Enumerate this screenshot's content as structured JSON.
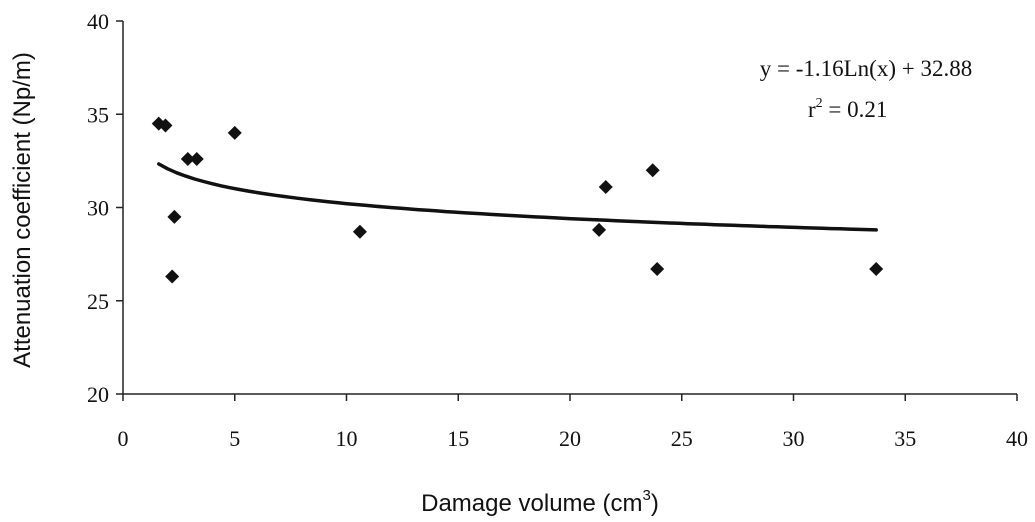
{
  "chart_data": {
    "type": "scatter",
    "xlabel": "Damage volume (cm",
    "xlabel_sup": "3",
    "xlabel_end": ")",
    "ylabel": "Attenuation coefficient (Np/m)",
    "xlim": [
      0,
      40
    ],
    "ylim": [
      20,
      40
    ],
    "x_ticks": [
      0,
      5,
      10,
      15,
      20,
      25,
      30,
      35,
      40
    ],
    "y_ticks": [
      20,
      25,
      30,
      35,
      40
    ],
    "x_tick_labels": [
      "0",
      "5",
      "10",
      "15",
      "20",
      "25",
      "30",
      "35",
      "40"
    ],
    "y_tick_labels": [
      "20",
      "25",
      "30",
      "35",
      "40"
    ],
    "grid": false,
    "series": [
      {
        "values": [
          {
            "x": 1.6,
            "y": 34.5
          },
          {
            "x": 1.9,
            "y": 34.4
          },
          {
            "x": 2.2,
            "y": 26.3
          },
          {
            "x": 2.3,
            "y": 29.5
          },
          {
            "x": 2.9,
            "y": 32.6
          },
          {
            "x": 3.3,
            "y": 32.6
          },
          {
            "x": 5.0,
            "y": 34.0
          },
          {
            "x": 10.6,
            "y": 28.7
          },
          {
            "x": 21.3,
            "y": 28.8
          },
          {
            "x": 21.6,
            "y": 31.1
          },
          {
            "x": 23.7,
            "y": 32.0
          },
          {
            "x": 23.9,
            "y": 26.7
          },
          {
            "x": 33.7,
            "y": 26.7
          }
        ]
      }
    ],
    "trendline": {
      "type": "logarithmic",
      "a": -1.16,
      "b": 32.88,
      "x_range": [
        1.6,
        33.7
      ]
    },
    "annotations": {
      "equation": "y = -1.16Ln(x) + 32.88",
      "r2_label": "r",
      "r2_sup": "2",
      "r2_value": " = 0.21"
    }
  }
}
